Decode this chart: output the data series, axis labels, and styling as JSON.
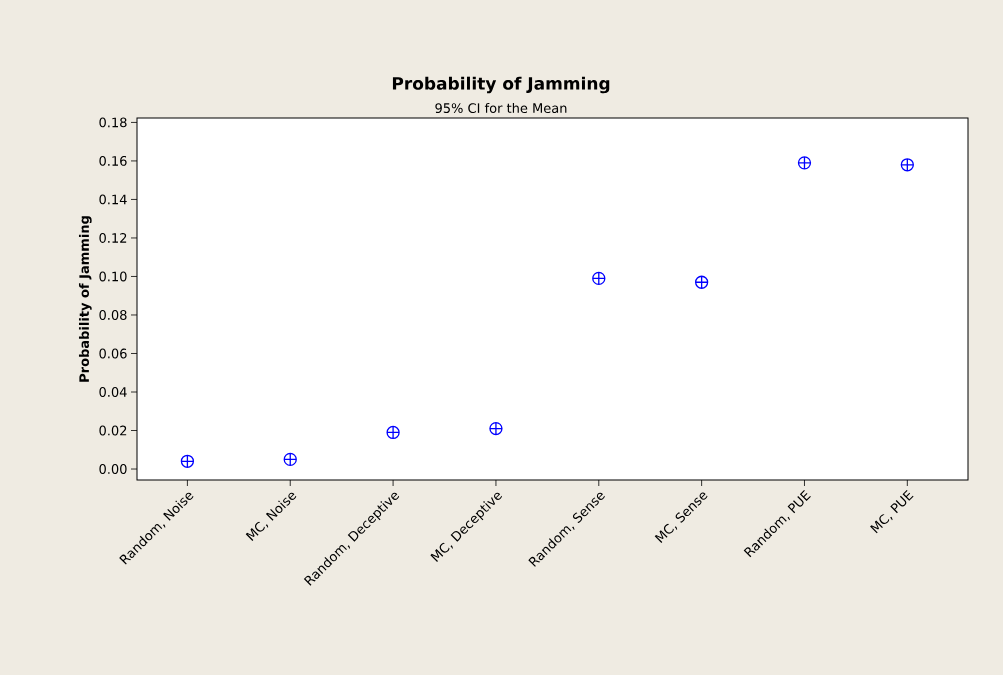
{
  "chart_data": {
    "type": "scatter",
    "title": "Probability of Jamming",
    "subtitle": "95% CI for the Mean",
    "ylabel": "Probability of Jamming",
    "categories": [
      "Random, Noise",
      "MC, Noise",
      "Random, Deceptive",
      "MC, Deceptive",
      "Random, Sense",
      "MC, Sense",
      "Random, PUE",
      "MC, PUE"
    ],
    "values": [
      0.004,
      0.005,
      0.019,
      0.021,
      0.099,
      0.097,
      0.159,
      0.158
    ],
    "color": "#0000ff",
    "marker": "cross",
    "ylim": [
      -0.0057,
      0.1823
    ],
    "yticks": [
      {
        "value": 0,
        "label": "0.00"
      },
      {
        "value": 0.02,
        "label": "0.02"
      },
      {
        "value": 0.04,
        "label": "0.04"
      },
      {
        "value": 0.06,
        "label": "0.06"
      },
      {
        "value": 0.08,
        "label": "0.08"
      },
      {
        "value": 0.1,
        "label": "0.10"
      },
      {
        "value": 0.12,
        "label": "0.12"
      },
      {
        "value": 0.14,
        "label": "0.14"
      },
      {
        "value": 0.16,
        "label": "0.16"
      },
      {
        "value": 0.18,
        "label": "0.18"
      }
    ],
    "grid": false
  }
}
